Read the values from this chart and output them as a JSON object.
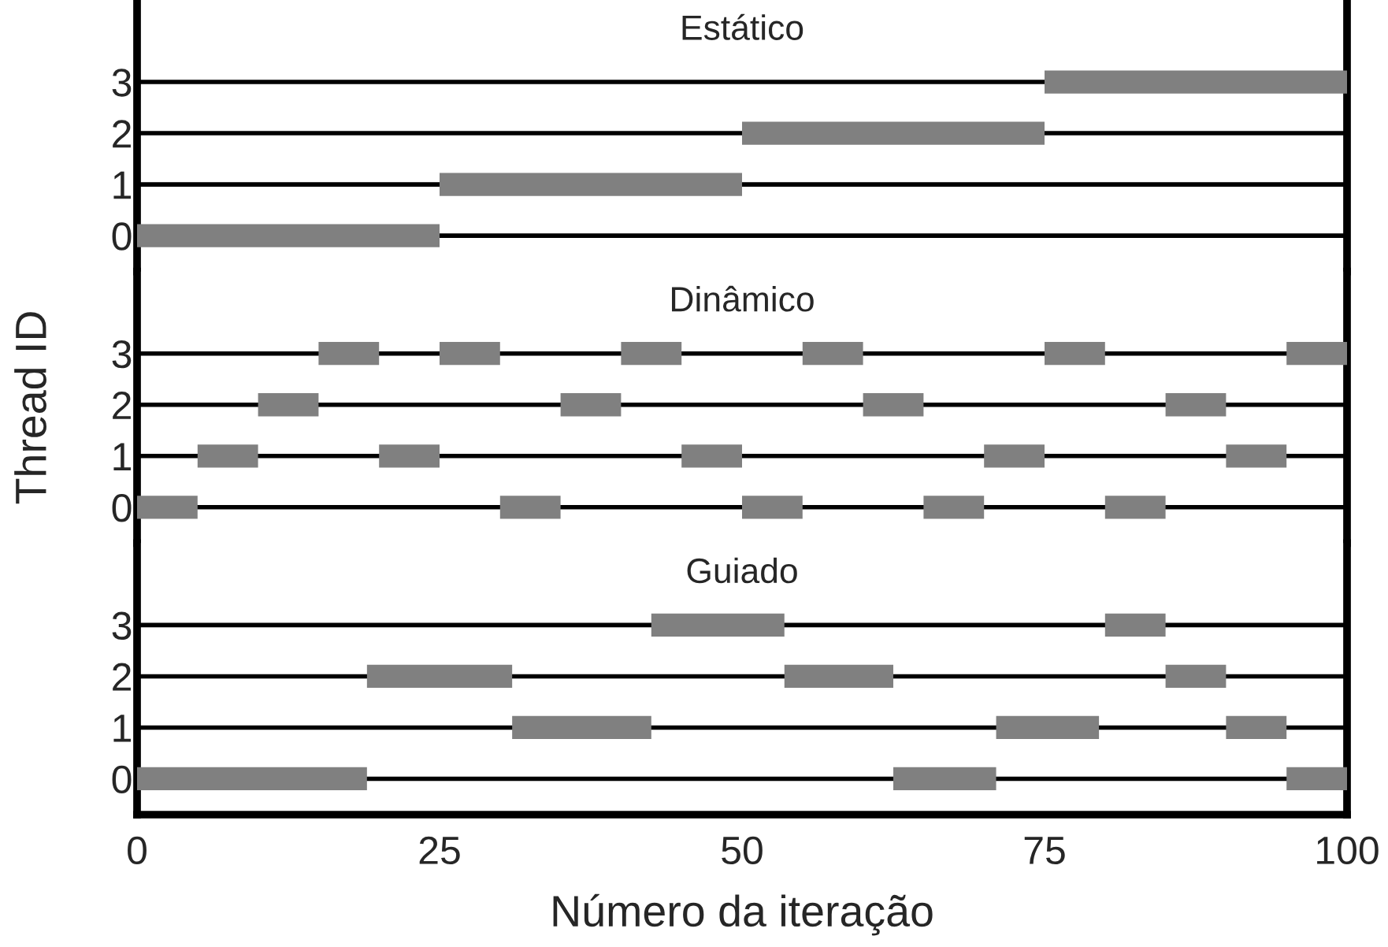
{
  "chart_data": [
    {
      "type": "bar",
      "orientation": "horizontal",
      "title": "Estático",
      "categories": [
        "3",
        "2",
        "1",
        "0"
      ],
      "xlim": [
        0,
        100
      ],
      "xticks": [
        0,
        25,
        50,
        75,
        100
      ],
      "tick_labels": "y",
      "grid": "y",
      "ylabel": "Thread ID",
      "series": [
        {
          "color": "#808080",
          "values": [
            25,
            25,
            25,
            25
          ],
          "base": [
            75,
            50,
            25,
            0
          ]
        }
      ]
    },
    {
      "type": "bar",
      "orientation": "horizontal",
      "title": "Dinâmico",
      "categories": [
        "3",
        "2",
        "1",
        "0"
      ],
      "xlim": [
        0,
        100
      ],
      "xticks": [
        0,
        25,
        50,
        75,
        100
      ],
      "tick_labels": "y",
      "grid": "y",
      "series": [
        {
          "color": "#808080",
          "values": [
            5,
            5,
            5,
            5
          ],
          "base": [
            15,
            10,
            5,
            0
          ]
        },
        {
          "color": "#808080",
          "values": [
            5,
            5,
            5,
            5
          ],
          "base": [
            25,
            35,
            20,
            30
          ]
        },
        {
          "color": "#808080",
          "values": [
            5,
            5,
            5,
            5
          ],
          "base": [
            40,
            60,
            45,
            50
          ]
        },
        {
          "color": "#808080",
          "values": [
            5,
            5,
            5,
            5
          ],
          "base": [
            55,
            85,
            70,
            65
          ]
        },
        {
          "color": "#808080",
          "values": [
            5,
            null,
            5,
            5
          ],
          "base": [
            75,
            null,
            90,
            80
          ]
        },
        {
          "color": "#808080",
          "values": [
            5,
            null,
            null,
            null
          ],
          "base": [
            95,
            null,
            null,
            null
          ]
        }
      ]
    },
    {
      "type": "bar",
      "orientation": "horizontal",
      "title": "Guiado",
      "categories": [
        "3",
        "2",
        "1",
        "0"
      ],
      "xlim": [
        0,
        100
      ],
      "xticks": [
        0,
        25,
        50,
        75,
        100
      ],
      "grid": "y",
      "xlabel": "Número da iteração",
      "series": [
        {
          "color": "#808080",
          "values": [
            11,
            12,
            11.5,
            19
          ],
          "base": [
            42.5,
            19,
            31,
            0
          ]
        },
        {
          "color": "#808080",
          "values": [
            5,
            9,
            8.5,
            8.5
          ],
          "base": [
            80,
            53.5,
            71,
            62.5
          ]
        },
        {
          "color": "#808080",
          "values": [
            null,
            5,
            5,
            5
          ],
          "base": [
            null,
            85,
            90,
            95
          ]
        }
      ]
    }
  ]
}
